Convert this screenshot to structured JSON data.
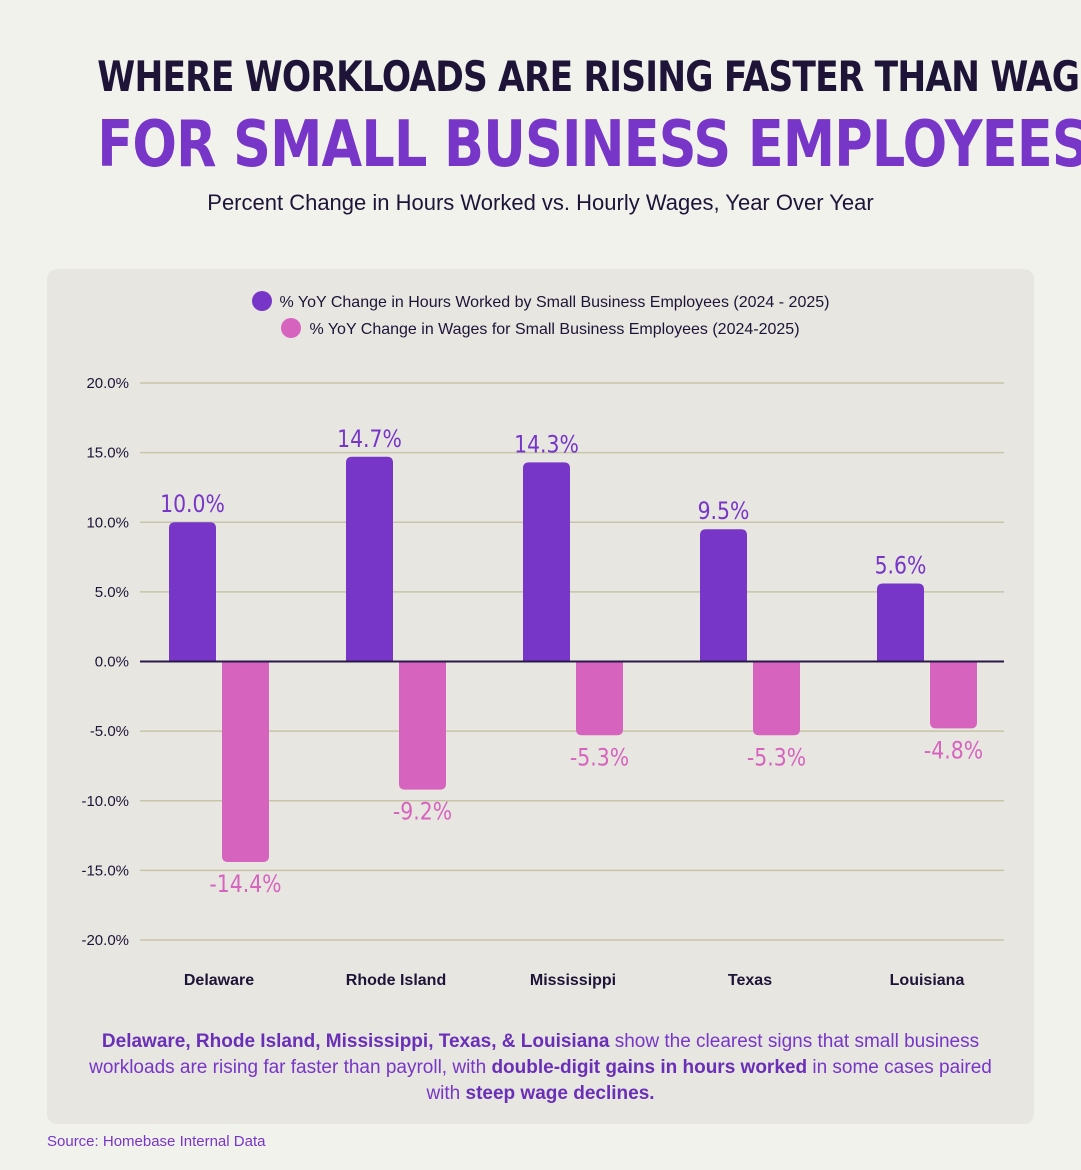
{
  "header": {
    "title_line1": "WHERE WORKLOADS ARE RISING FASTER THAN WAGES",
    "title_line2": "FOR SMALL BUSINESS EMPLOYEES",
    "subtitle": "Percent Change in Hours Worked vs. Hourly Wages, Year Over Year"
  },
  "colors": {
    "hours": "#7736c8",
    "wages": "#d664bf",
    "title_dark": "#1e1438",
    "gridline": "#c7c4aa",
    "zero_line": "#2a1a4a"
  },
  "chart_data": {
    "type": "bar",
    "categories": [
      "Delaware",
      "Rhode Island",
      "Mississippi",
      "Texas",
      "Louisiana"
    ],
    "series": [
      {
        "name": "% YoY Change in Hours Worked by Small Business Employees (2024 - 2025)",
        "values": [
          10.0,
          14.7,
          14.3,
          9.5,
          5.6
        ],
        "labels": [
          "10.0%",
          "14.7%",
          "14.3%",
          "9.5%",
          "5.6%"
        ]
      },
      {
        "name": "% YoY Change in Wages for Small Business Employees (2024-2025)",
        "values": [
          -14.4,
          -9.2,
          -5.3,
          -5.3,
          -4.8
        ],
        "labels": [
          "-14.4%",
          "-9.2%",
          "-5.3%",
          "-5.3%",
          "-4.8%"
        ]
      }
    ],
    "ylim": [
      -20,
      20
    ],
    "yticks": [
      20,
      15,
      10,
      5,
      0,
      -5,
      -10,
      -15,
      -20
    ],
    "ytick_labels": [
      "20.0%",
      "15.0%",
      "10.0%",
      "5.0%",
      "0.0%",
      "-5.0%",
      "-10.0%",
      "-15.0%",
      "-20.0%"
    ],
    "grid": true,
    "legend_position": "top-center"
  },
  "footnote": {
    "bold_lead": "Delaware, Rhode Island, Mississippi, Texas, & Louisiana",
    "text_1": " show the clearest signs that small business workloads are rising far faster than payroll, with ",
    "bold_mid": "double-digit gains in hours worked",
    "text_2": " in some cases paired with ",
    "bold_end": "steep wage declines."
  },
  "source": "Source: Homebase Internal Data"
}
